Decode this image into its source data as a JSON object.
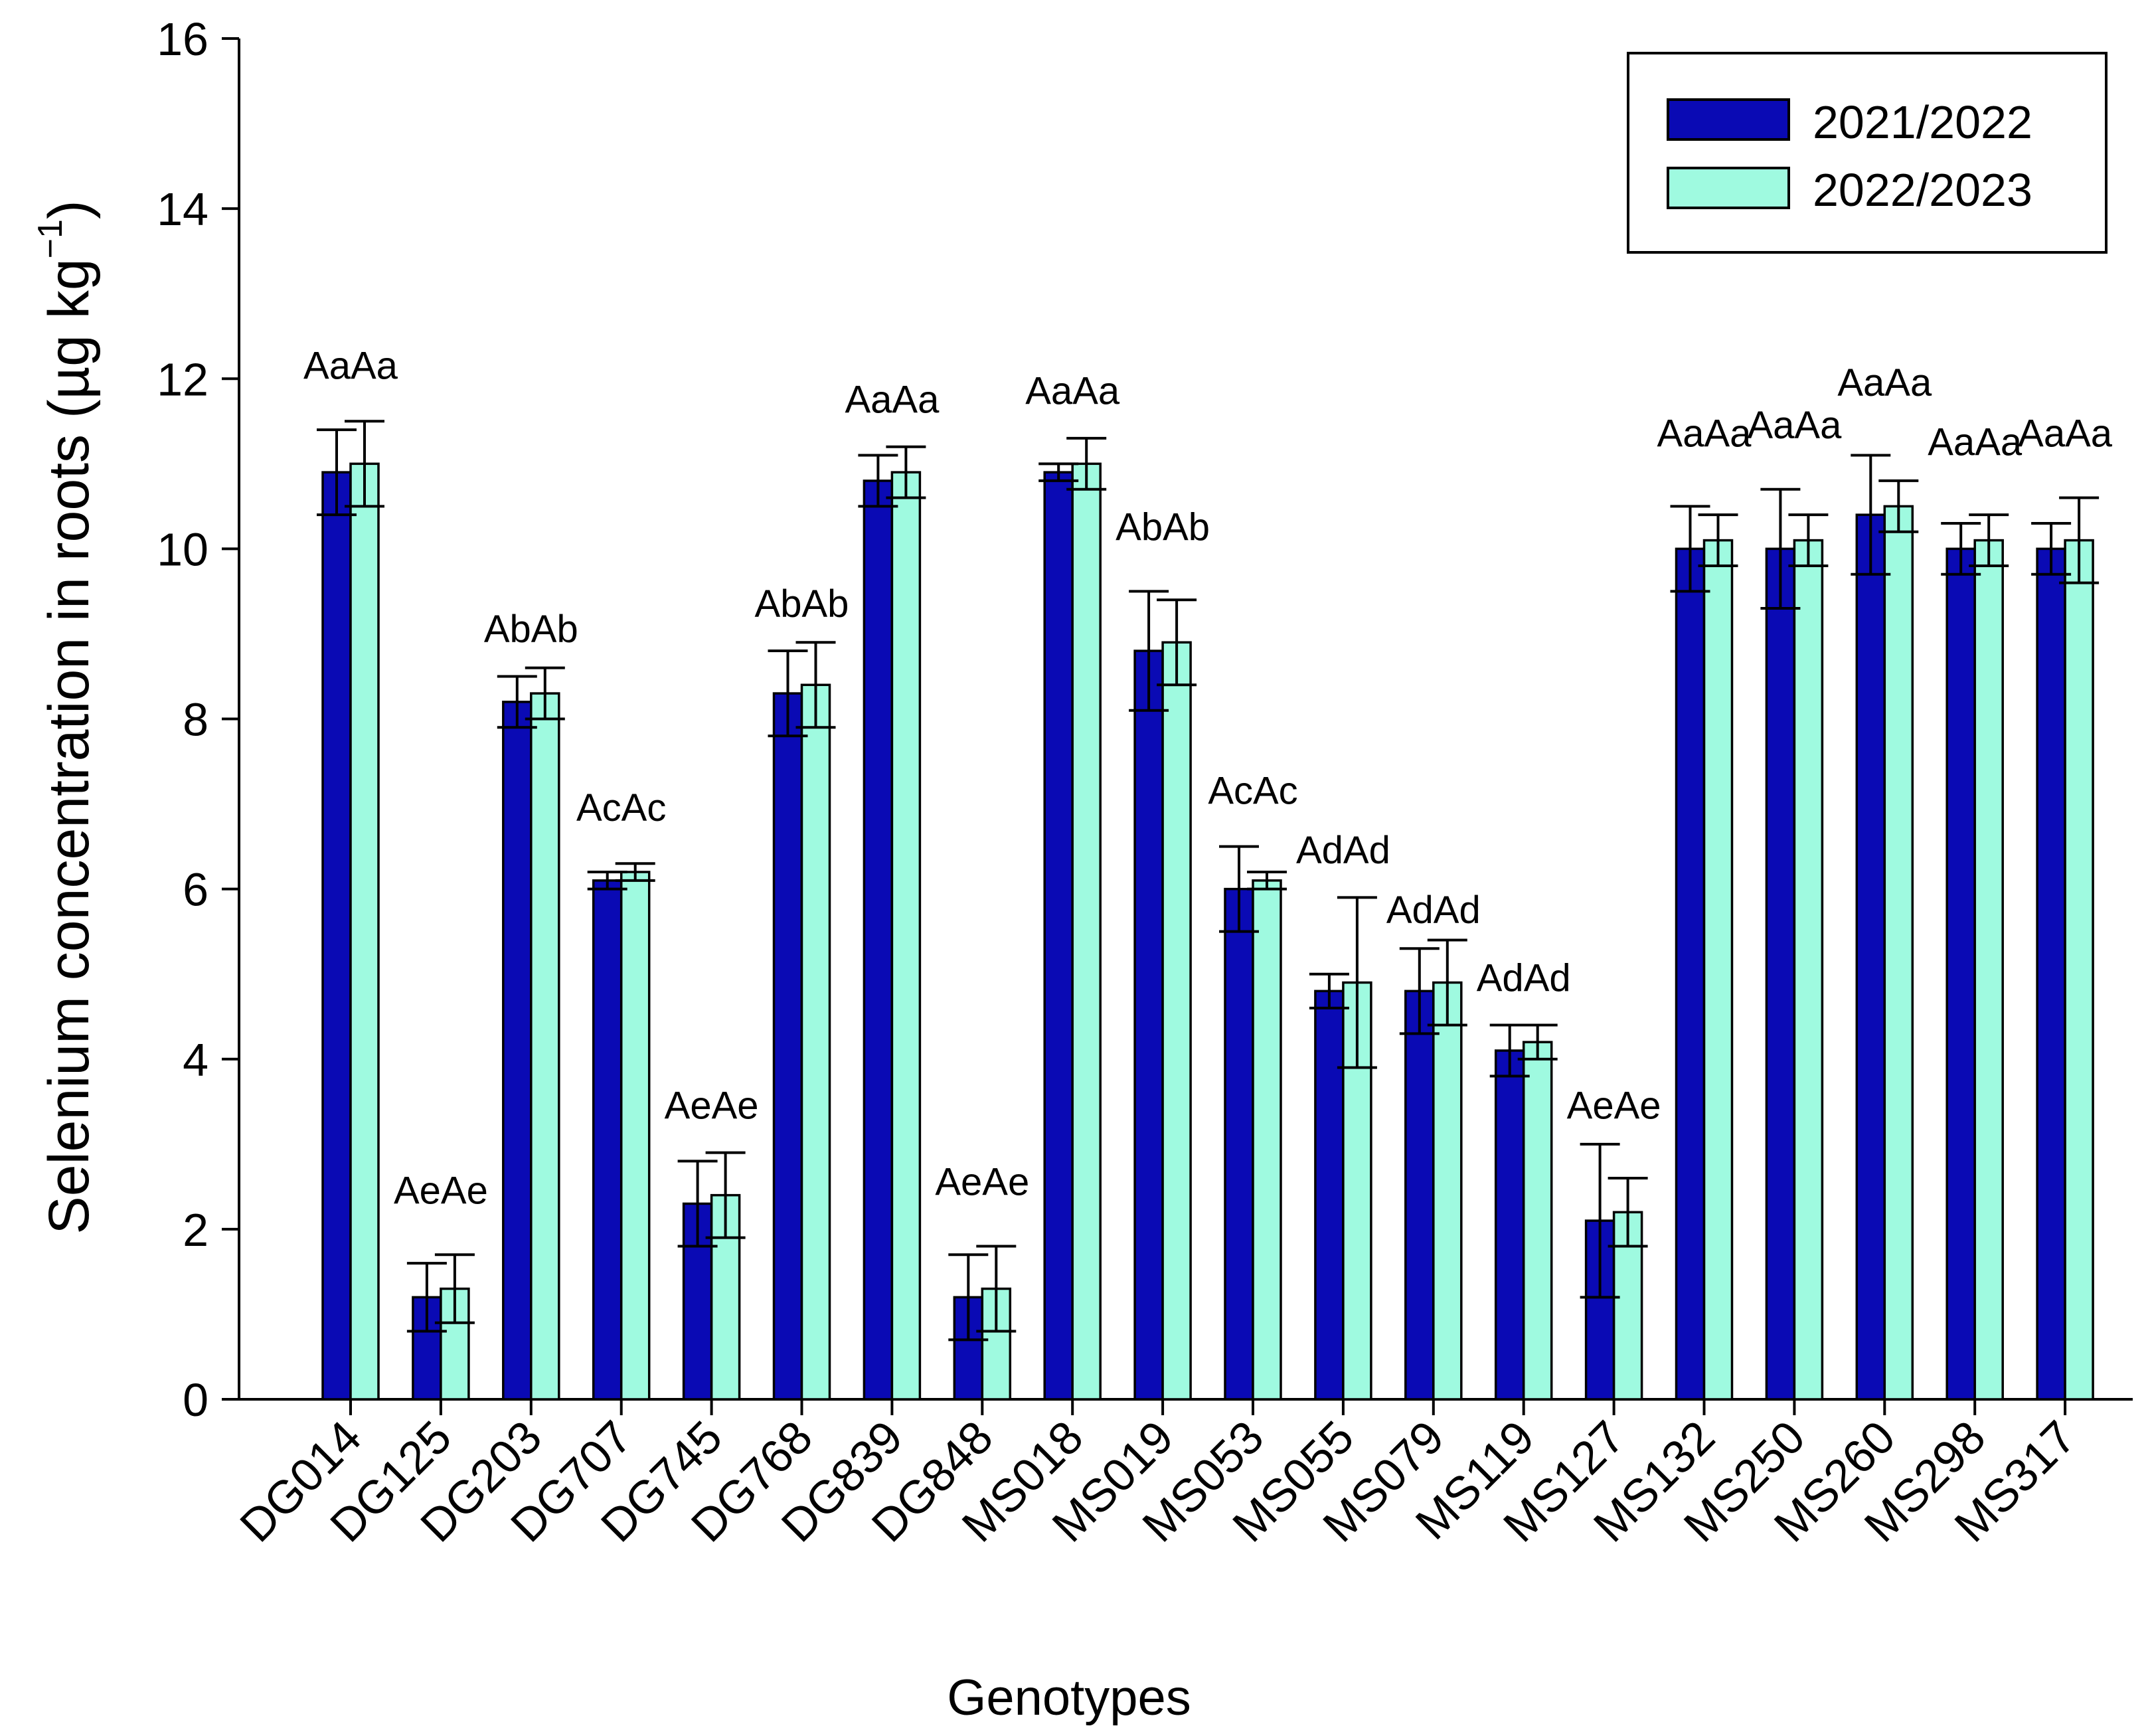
{
  "chart_data": {
    "type": "bar",
    "title": "",
    "xlabel": "Genotypes",
    "ylabel": "Selenium concentration in roots (µg kg",
    "ylabel_superscript": "−1",
    "ylabel_close": ")",
    "ylim": [
      0,
      16
    ],
    "yticks": [
      0,
      2,
      4,
      6,
      8,
      10,
      12,
      14,
      16
    ],
    "grid": false,
    "legend_position": "top-right",
    "categories": [
      "DG014",
      "DG125",
      "DG203",
      "DG707",
      "DG745",
      "DG768",
      "DG839",
      "DG848",
      "MS018",
      "MS019",
      "MS053",
      "MS055",
      "MS079",
      "MS119",
      "MS127",
      "MS132",
      "MS250",
      "MS260",
      "MS298",
      "MS317"
    ],
    "series": [
      {
        "name": "2021/2022",
        "color": "#0a0ab4",
        "values": [
          10.9,
          1.2,
          8.2,
          6.1,
          2.3,
          8.3,
          10.8,
          1.2,
          10.9,
          8.8,
          6.0,
          4.8,
          4.8,
          4.1,
          2.1,
          10.0,
          10.0,
          10.4,
          10.0,
          10.0
        ],
        "errors": [
          0.5,
          0.4,
          0.3,
          0.1,
          0.5,
          0.5,
          0.3,
          0.5,
          0.1,
          0.7,
          0.5,
          0.2,
          0.5,
          0.3,
          0.9,
          0.5,
          0.7,
          0.7,
          0.3,
          0.3
        ]
      },
      {
        "name": "2022/2023",
        "color": "#9ffae0",
        "values": [
          11.0,
          1.3,
          8.3,
          6.2,
          2.4,
          8.4,
          10.9,
          1.3,
          11.0,
          8.9,
          6.1,
          4.9,
          4.9,
          4.2,
          2.2,
          10.1,
          10.1,
          10.5,
          10.1,
          10.1
        ],
        "errors": [
          0.5,
          0.4,
          0.3,
          0.1,
          0.5,
          0.5,
          0.3,
          0.5,
          0.3,
          0.5,
          0.1,
          1.0,
          0.5,
          0.2,
          0.4,
          0.3,
          0.3,
          0.3,
          0.3,
          0.5
        ]
      }
    ],
    "annotations": [
      "AaAa",
      "AeAe",
      "AbAb",
      "AcAc",
      "AeAe",
      "AbAb",
      "AaAa",
      "AeAe",
      "AaAa",
      "AbAb",
      "AcAc",
      "AdAd",
      "AdAd",
      "AdAd",
      "AeAe",
      "AaAa",
      "AaAa",
      "AaAa",
      "AaAa",
      "AaAa"
    ],
    "annotation_values": [
      12.0,
      2.3,
      8.9,
      6.8,
      3.3,
      9.2,
      11.6,
      2.4,
      11.7,
      10.1,
      7.0,
      6.3,
      5.6,
      4.8,
      3.3,
      11.2,
      11.3,
      11.8,
      11.1,
      11.2
    ]
  }
}
